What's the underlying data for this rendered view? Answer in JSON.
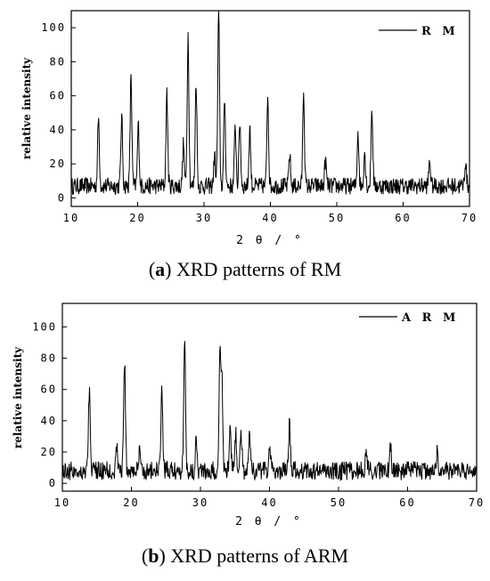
{
  "chart_data": [
    {
      "type": "line",
      "caption_letter": "a",
      "caption_text": "XRD patterns of RM",
      "xlabel": "2 θ / °",
      "ylabel": "relative intensity",
      "xlim": [
        10,
        70
      ],
      "ylim": [
        -5,
        110
      ],
      "xticks": [
        10,
        20,
        30,
        40,
        50,
        60,
        70
      ],
      "yticks": [
        0,
        20,
        40,
        60,
        80,
        100
      ],
      "legend_position": "top-right",
      "series": [
        {
          "name": "R M",
          "color": "#000000"
        }
      ],
      "baseline": 7,
      "noise": 5,
      "peaks": [
        {
          "x": 14.1,
          "y": 47
        },
        {
          "x": 17.6,
          "y": 47
        },
        {
          "x": 19.0,
          "y": 73
        },
        {
          "x": 20.1,
          "y": 43
        },
        {
          "x": 24.4,
          "y": 61
        },
        {
          "x": 26.9,
          "y": 32
        },
        {
          "x": 27.6,
          "y": 96
        },
        {
          "x": 28.8,
          "y": 69
        },
        {
          "x": 31.6,
          "y": 25
        },
        {
          "x": 32.2,
          "y": 110
        },
        {
          "x": 33.1,
          "y": 59
        },
        {
          "x": 34.7,
          "y": 42
        },
        {
          "x": 35.4,
          "y": 45
        },
        {
          "x": 36.9,
          "y": 41
        },
        {
          "x": 39.6,
          "y": 61
        },
        {
          "x": 42.9,
          "y": 26
        },
        {
          "x": 45.0,
          "y": 64
        },
        {
          "x": 48.3,
          "y": 22
        },
        {
          "x": 53.2,
          "y": 39
        },
        {
          "x": 54.2,
          "y": 27
        },
        {
          "x": 55.3,
          "y": 52
        },
        {
          "x": 64.0,
          "y": 22
        },
        {
          "x": 69.4,
          "y": 21
        }
      ]
    },
    {
      "type": "line",
      "caption_letter": "b",
      "caption_text": "XRD patterns of ARM",
      "xlabel": "2 θ / °",
      "ylabel": "relative intensity",
      "xlim": [
        10,
        70
      ],
      "ylim": [
        -5,
        115
      ],
      "xticks": [
        10,
        20,
        30,
        40,
        50,
        60,
        70
      ],
      "yticks": [
        0,
        20,
        40,
        60,
        80,
        100
      ],
      "legend_position": "top-right",
      "series": [
        {
          "name": "A R M",
          "color": "#000000"
        }
      ],
      "baseline": 8,
      "noise": 6,
      "peaks": [
        {
          "x": 13.9,
          "y": 60
        },
        {
          "x": 17.9,
          "y": 22
        },
        {
          "x": 19.0,
          "y": 79
        },
        {
          "x": 21.2,
          "y": 20
        },
        {
          "x": 24.4,
          "y": 60
        },
        {
          "x": 27.7,
          "y": 92
        },
        {
          "x": 29.4,
          "y": 29
        },
        {
          "x": 32.8,
          "y": 79
        },
        {
          "x": 33.1,
          "y": 69
        },
        {
          "x": 34.3,
          "y": 35
        },
        {
          "x": 35.1,
          "y": 33
        },
        {
          "x": 35.9,
          "y": 32
        },
        {
          "x": 37.1,
          "y": 35
        },
        {
          "x": 40.0,
          "y": 23
        },
        {
          "x": 42.9,
          "y": 37
        },
        {
          "x": 54.0,
          "y": 23
        },
        {
          "x": 57.5,
          "y": 24
        },
        {
          "x": 64.3,
          "y": 20
        }
      ]
    }
  ]
}
